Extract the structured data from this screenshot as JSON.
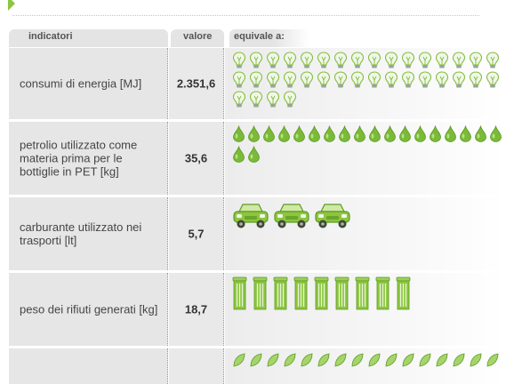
{
  "header": {
    "indicatori": "indicatori",
    "valore": "valore",
    "equivale": "equivale a:"
  },
  "rows": [
    {
      "label": "consumi di energia [MJ]",
      "value": "2.351,6",
      "icon": "light-bulb-icon",
      "icon_count": 36
    },
    {
      "label": "petrolio utilizzato come materia prima per le bottiglie in PET [kg]",
      "value": "35,6",
      "icon": "oil-drop-icon",
      "icon_count": 20
    },
    {
      "label": "carburante utilizzato nei trasporti [lt]",
      "value": "5,7",
      "icon": "car-icon",
      "icon_count": 3
    },
    {
      "label": "peso dei rifiuti generati [kg]",
      "value": "18,7",
      "icon": "waste-bin-icon",
      "icon_count": 9
    },
    {
      "label": "",
      "value": "",
      "icon": "leaf-icon",
      "icon_count": 16
    }
  ],
  "colors": {
    "accent": "#8cc63f",
    "icon_green": "#7fbf3a",
    "cell_bg": "#e6e6e6"
  }
}
